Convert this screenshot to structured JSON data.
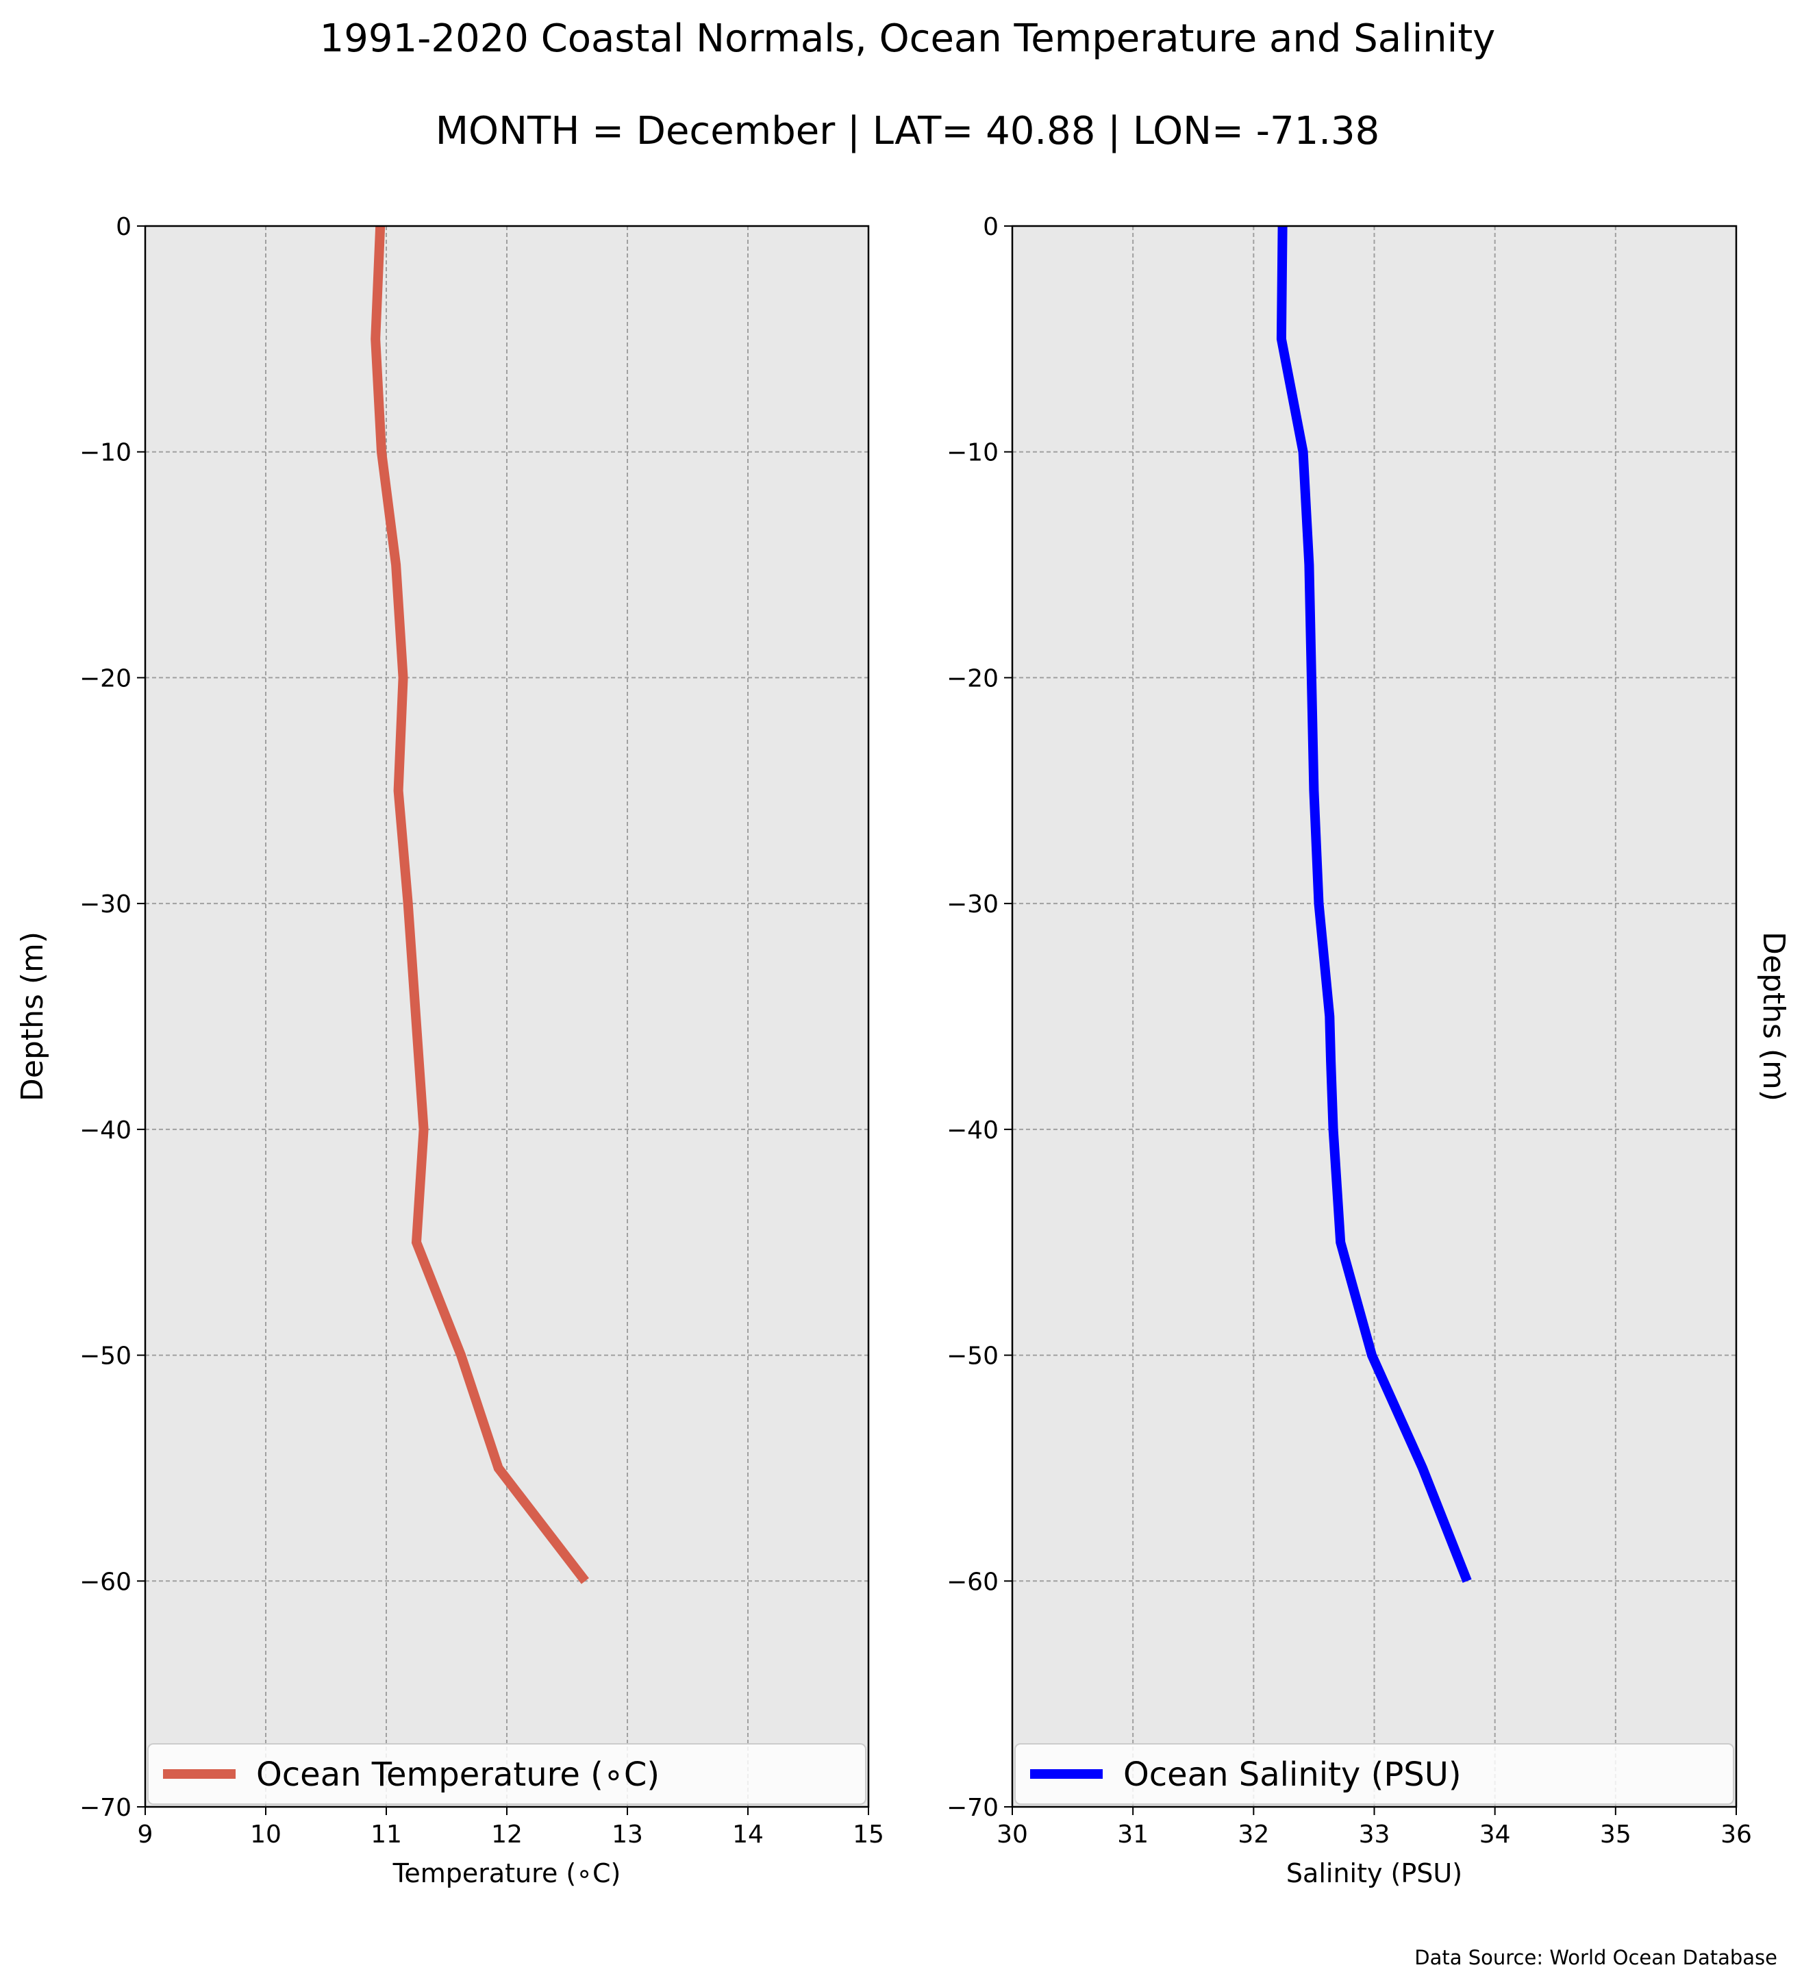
{
  "title": "1991-2020 Coastal Normals, Ocean Temperature and Salinity",
  "subtitle": "MONTH = December | LAT= 40.88 | LON= -71.38",
  "source": "Data Source: World Ocean Database",
  "chart_data": [
    {
      "type": "line",
      "xlabel": "Temperature (∘C)",
      "ylabel": "Depths (m)",
      "xlim": [
        9,
        15
      ],
      "ylim": [
        -70,
        0
      ],
      "xticks": [
        9,
        10,
        11,
        12,
        13,
        14,
        15
      ],
      "yticks": [
        0,
        -10,
        -20,
        -30,
        -40,
        -50,
        -60,
        -70
      ],
      "ytick_labels": [
        "0",
        "−10",
        "−20",
        "−30",
        "−40",
        "−50",
        "−60",
        "−70"
      ],
      "grid": true,
      "legend": "bottom",
      "color": "#d65f4d",
      "series": [
        {
          "name": "Ocean Temperature (∘C)",
          "x": [
            10.95,
            10.91,
            10.96,
            11.08,
            11.14,
            11.1,
            11.18,
            11.31,
            11.25,
            11.62,
            11.93,
            12.65
          ],
          "y": [
            0,
            -5,
            -10,
            -15,
            -20,
            -25,
            -30,
            -40,
            -45,
            -50,
            -55,
            -60
          ]
        }
      ]
    },
    {
      "type": "line",
      "xlabel": "Salinity (PSU)",
      "ylabel": "Depths (m)",
      "xlim": [
        30,
        36
      ],
      "ylim": [
        -70,
        0
      ],
      "xticks": [
        30,
        31,
        32,
        33,
        34,
        35,
        36
      ],
      "yticks": [
        0,
        -10,
        -20,
        -30,
        -40,
        -50,
        -60,
        -70
      ],
      "ytick_labels": [
        "0",
        "−10",
        "−20",
        "−30",
        "−40",
        "−50",
        "−60",
        "−70"
      ],
      "grid": true,
      "legend": "bottom",
      "color": "#0000ff",
      "series": [
        {
          "name": "Ocean Salinity (PSU)",
          "x": [
            32.24,
            32.23,
            32.41,
            32.46,
            32.48,
            32.5,
            32.54,
            32.63,
            32.64,
            32.66,
            32.72,
            32.98,
            33.4,
            33.77
          ],
          "y": [
            0,
            -5,
            -10,
            -15,
            -20,
            -25,
            -30,
            -35,
            -37,
            -40,
            -45,
            -50,
            -55,
            -60
          ]
        }
      ]
    }
  ]
}
